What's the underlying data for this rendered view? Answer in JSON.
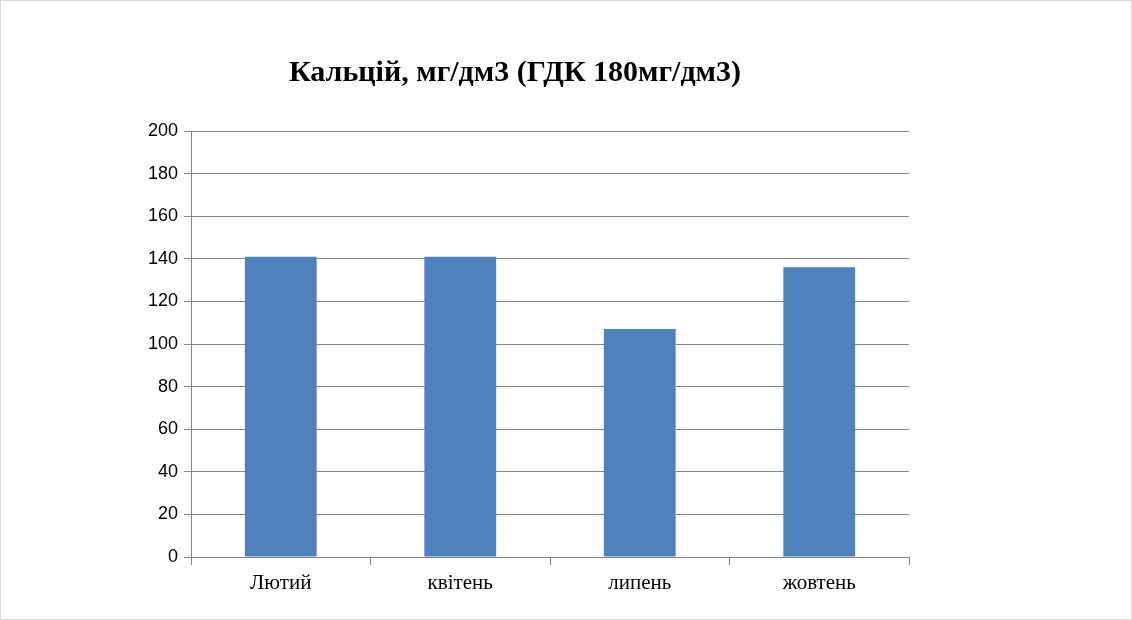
{
  "chart_data": {
    "type": "bar",
    "title": "Кальцій, мг/дм3 (ГДК 180мг/дм3)",
    "categories": [
      "Лютий",
      "квітень",
      "липень",
      "жовтень"
    ],
    "values": [
      141,
      141,
      107,
      136
    ],
    "color": "#4f81bd",
    "ylim": [
      0,
      200
    ],
    "yticks": [
      0,
      20,
      40,
      60,
      80,
      100,
      120,
      140,
      160,
      180,
      200
    ],
    "grid": "y",
    "legend": false
  }
}
